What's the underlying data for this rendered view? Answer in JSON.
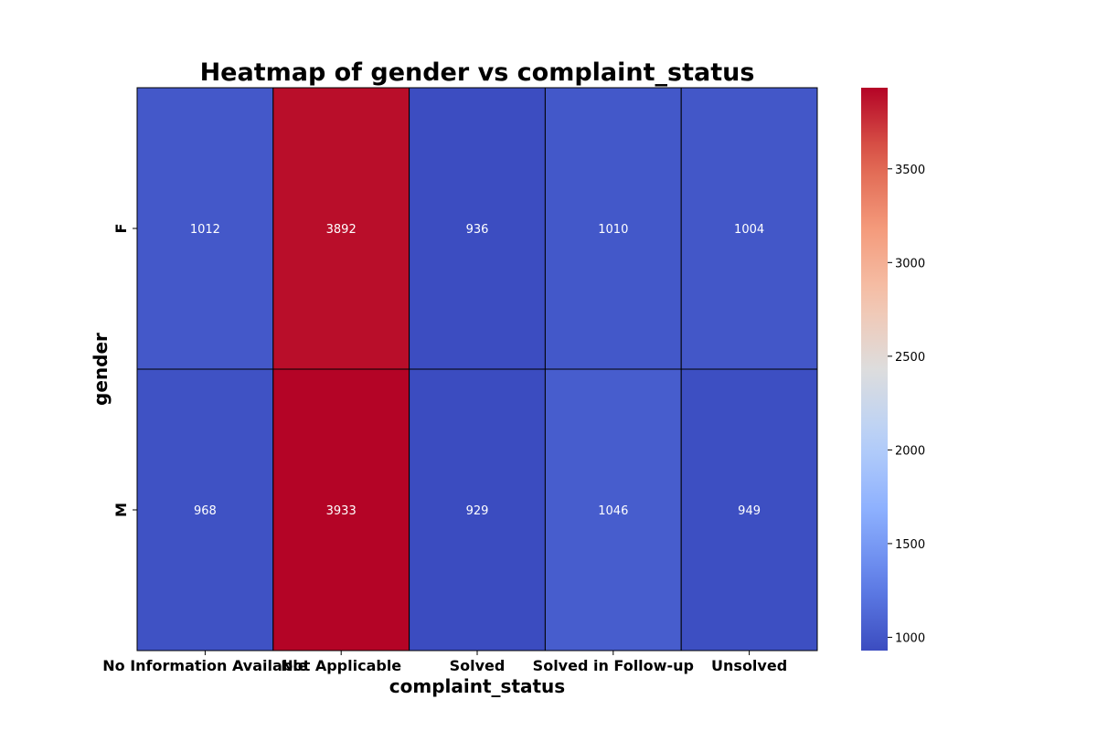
{
  "chart_data": {
    "type": "heatmap",
    "title": "Heatmap of gender vs complaint_status",
    "xlabel": "complaint_status",
    "ylabel": "gender",
    "x_categories": [
      "No Information Available",
      "Not Applicable",
      "Solved",
      "Solved in Follow-up",
      "Unsolved"
    ],
    "y_categories": [
      "F",
      "M"
    ],
    "values": [
      [
        1012,
        3892,
        936,
        1010,
        1004
      ],
      [
        968,
        3933,
        929,
        1046,
        949
      ]
    ],
    "annotations": true,
    "colormap": "coolwarm",
    "colorbar": {
      "range": [
        929,
        3933
      ],
      "ticks": [
        1000,
        1500,
        2000,
        2500,
        3000,
        3500
      ]
    },
    "cell_border_color": "#000000",
    "annotation_color": "#ffffff"
  }
}
